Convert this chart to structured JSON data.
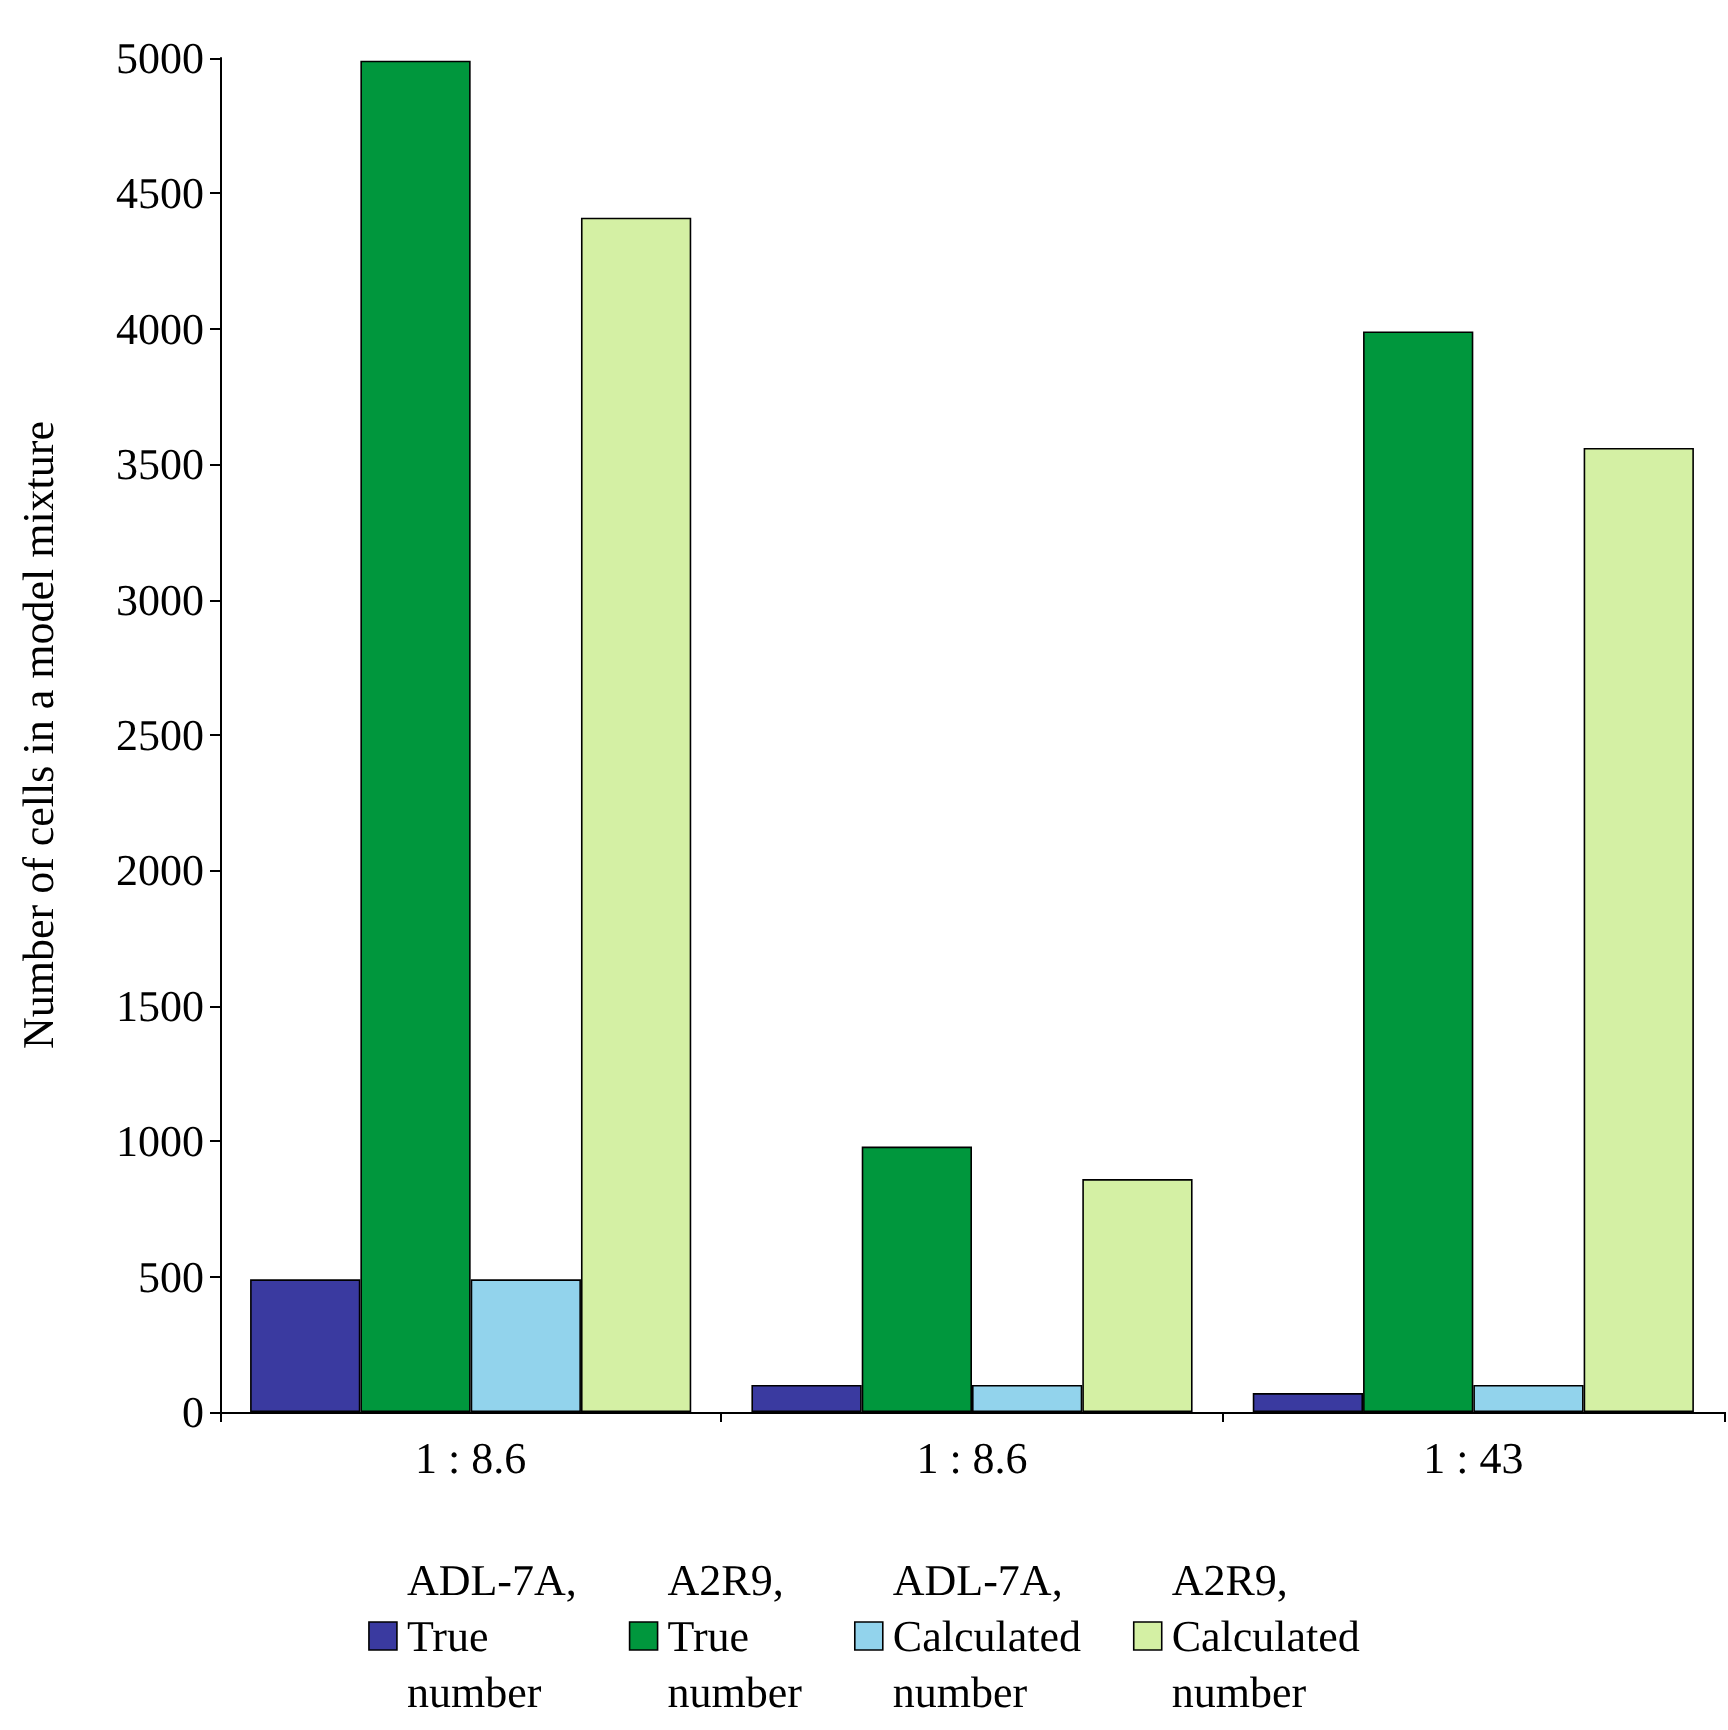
{
  "chart_data": {
    "type": "bar",
    "ylabel": "Number of cells in a model mixture",
    "categories": [
      "1 : 8.6",
      "1 : 8.6",
      "1 : 43"
    ],
    "series": [
      {
        "name": "ADL-7A, True number",
        "color": "#3a3aa0",
        "values": [
          490,
          100,
          70
        ]
      },
      {
        "name": "A2R9, True number",
        "color": "#00973d",
        "values": [
          4990,
          980,
          3990
        ]
      },
      {
        "name": "ADL-7A, Calculated number",
        "color": "#92d3ec",
        "values": [
          490,
          100,
          100
        ]
      },
      {
        "name": "A2R9, Calculated number",
        "color": "#d4f0a4",
        "values": [
          4410,
          860,
          3560
        ]
      }
    ],
    "ylim": [
      0,
      5000
    ],
    "yticks": [
      0,
      500,
      1000,
      1500,
      2000,
      2500,
      3000,
      3500,
      4000,
      4500,
      5000
    ],
    "grid": false,
    "legend": "bottom"
  }
}
